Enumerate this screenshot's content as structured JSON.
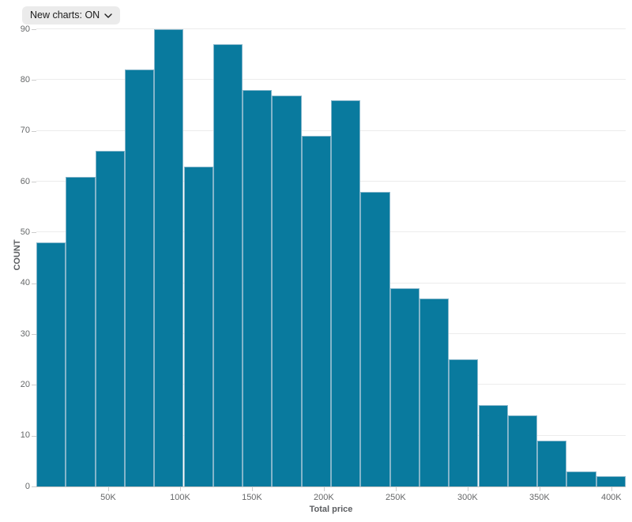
{
  "controls": {
    "new_charts_toggle": {
      "label": "New charts: ON",
      "state": "ON"
    }
  },
  "chart_data": {
    "type": "bar",
    "subtype": "histogram",
    "title": "",
    "xlabel": "Total price",
    "ylabel": "COUNT",
    "values": [
      48,
      61,
      66,
      82,
      90,
      63,
      87,
      78,
      77,
      69,
      76,
      58,
      39,
      37,
      25,
      16,
      14,
      9,
      3,
      2
    ],
    "bin_count": 20,
    "ylim": [
      0,
      90
    ],
    "y_ticks": [
      0,
      10,
      20,
      30,
      40,
      50,
      60,
      70,
      80,
      90
    ],
    "x_domain_k": [
      0,
      410
    ],
    "x_tick_values_k": [
      50,
      100,
      150,
      200,
      250,
      300,
      350,
      400
    ],
    "x_tick_labels": [
      "50K",
      "100K",
      "150K",
      "200K",
      "250K",
      "300K",
      "350K",
      "400K"
    ],
    "grid": "horizontal",
    "legend": "none",
    "bar_color": "#097a9e",
    "bar_stroke_color": "#84b5ca"
  }
}
